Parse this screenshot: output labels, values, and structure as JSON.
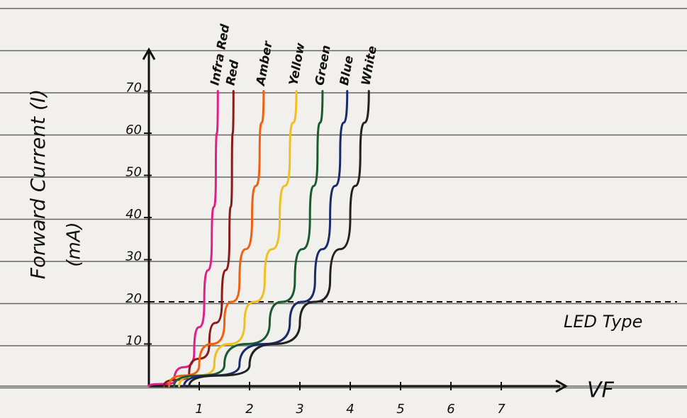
{
  "chart_data": {
    "type": "line",
    "y_label": "Forward Current (I)",
    "y_unit": "(mA)",
    "x_label": "VF",
    "annotation": "LED Type",
    "hline": 20,
    "xlim": [
      0,
      8
    ],
    "ylim": [
      0,
      79
    ],
    "xticks": [
      1,
      2,
      3,
      4,
      5,
      6,
      7
    ],
    "yticks": [
      10,
      20,
      30,
      40,
      50,
      60,
      70
    ],
    "series": [
      {
        "name": "Infra Red",
        "color": "#e0208a",
        "x": [
          0,
          0.5,
          0.9,
          1.1,
          1.25,
          1.33,
          1.37
        ],
        "values": [
          0,
          1,
          8,
          20,
          35,
          50,
          70
        ]
      },
      {
        "name": "Red",
        "color": "#8b1a1a",
        "x": [
          0.3,
          0.8,
          1.2,
          1.45,
          1.6,
          1.65,
          1.68
        ],
        "values": [
          0,
          3,
          10,
          20,
          35,
          50,
          70
        ]
      },
      {
        "name": "Amber",
        "color": "#f06010",
        "x": [
          0.4,
          1,
          1.5,
          1.8,
          2.05,
          2.2,
          2.28
        ],
        "values": [
          0,
          5,
          15,
          25,
          40,
          55,
          70
        ]
      },
      {
        "name": "Yellow",
        "color": "#f0c020",
        "x": [
          0.6,
          1.3,
          1.9,
          2.3,
          2.6,
          2.8,
          2.93
        ],
        "values": [
          0,
          5,
          15,
          25,
          40,
          55,
          70
        ]
      },
      {
        "name": "Green",
        "color": "#1a5a30",
        "x": [
          0.5,
          1.5,
          2.4,
          2.9,
          3.2,
          3.35,
          3.45
        ],
        "values": [
          0,
          5,
          15,
          25,
          40,
          55,
          70
        ]
      },
      {
        "name": "Blue",
        "color": "#1a2a6a",
        "x": [
          0.7,
          1.8,
          2.8,
          3.3,
          3.6,
          3.8,
          3.94
        ],
        "values": [
          0,
          5,
          15,
          25,
          40,
          55,
          70
        ]
      },
      {
        "name": "White",
        "color": "#222222",
        "x": [
          0.8,
          2,
          3,
          3.6,
          4,
          4.2,
          4.37
        ],
        "values": [
          0,
          5,
          15,
          25,
          40,
          55,
          70
        ]
      }
    ]
  }
}
